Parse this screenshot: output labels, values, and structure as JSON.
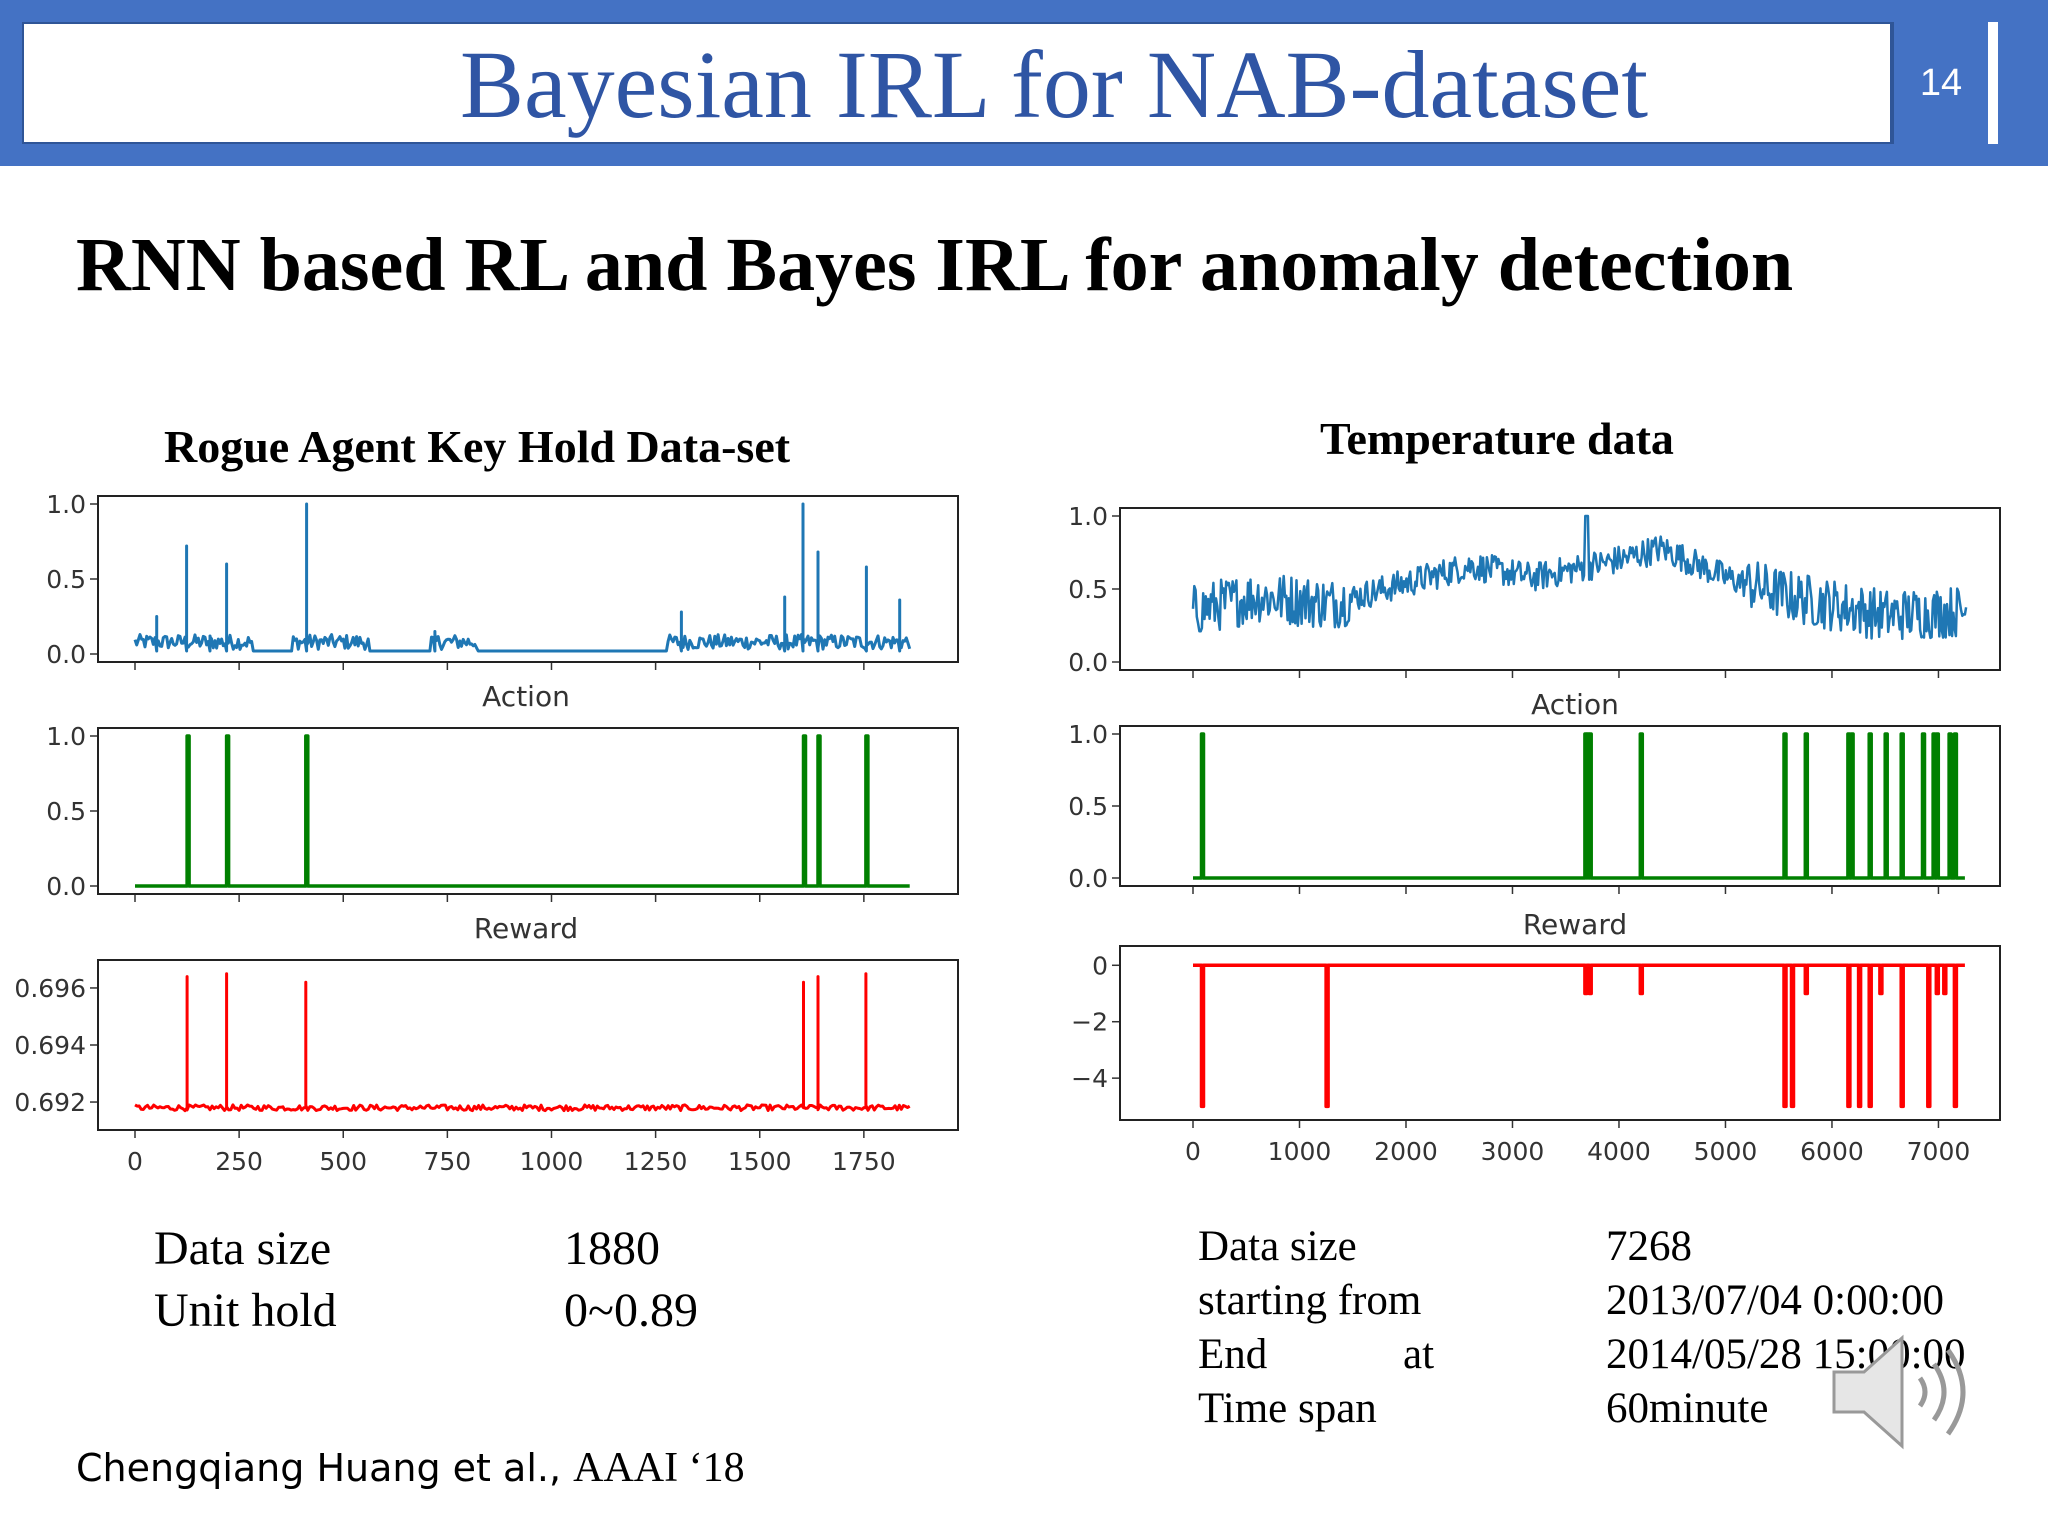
{
  "header": {
    "title": "Bayesian IRL for NAB-dataset",
    "page_number": "14"
  },
  "subtitle": "RNN based RL and Bayes IRL for anomaly detection",
  "colors": {
    "header_blue": "#4472c4",
    "title_blue": "#2f55a4",
    "series_blue": "#1f77b4",
    "series_green": "#008000",
    "series_red": "#ff0000"
  },
  "left_panel": {
    "title": "Rogue Agent Key Hold Data-set",
    "info": {
      "labels": [
        "Data size",
        "Unit hold"
      ],
      "values": [
        "1880",
        "0~0.89"
      ]
    }
  },
  "right_panel": {
    "title": "Temperature data",
    "info": {
      "labels": [
        "Data size",
        "starting  from",
        "End",
        "Time span"
      ],
      "end_at": "at",
      "values": [
        "7268",
        "2013/07/04  0:00:00",
        "2014/05/28  15:00:00",
        "60minute"
      ]
    }
  },
  "citation": {
    "authors": "Chengqiang Huang et al., ",
    "venue": "AAAI ‘18"
  },
  "speaker_icon": "speaker-volume-icon",
  "chart_data": [
    {
      "type": "line",
      "panel": "left",
      "subplot": "data",
      "xlim": [
        0,
        1880
      ],
      "ylim": [
        0,
        1
      ],
      "yticks": [
        "0.0",
        "0.5",
        "1.0"
      ],
      "baseline": 0.08,
      "noise": [
        0.03,
        0.13
      ],
      "noise_ranges": [
        [
          0,
          280
        ],
        [
          380,
          560
        ],
        [
          710,
          820
        ],
        [
          1280,
          1870
        ]
      ],
      "spikes": [
        [
          50,
          0.25
        ],
        [
          125,
          0.72
        ],
        [
          180,
          0.12
        ],
        [
          220,
          0.6
        ],
        [
          410,
          1.0
        ],
        [
          720,
          0.15
        ],
        [
          1310,
          0.28
        ],
        [
          1560,
          0.38
        ],
        [
          1605,
          1.0
        ],
        [
          1640,
          0.68
        ],
        [
          1755,
          0.58
        ],
        [
          1835,
          0.36
        ]
      ]
    },
    {
      "type": "line",
      "panel": "left",
      "subplot": "Action",
      "title": "Action",
      "xlim": [
        0,
        1880
      ],
      "ylim": [
        0,
        1
      ],
      "yticks": [
        "0.0",
        "0.5",
        "1.0"
      ],
      "spikes_x": [
        125,
        220,
        410,
        1605,
        1640,
        1755
      ],
      "spike_value": 1.0,
      "baseline": 0.0
    },
    {
      "type": "line",
      "panel": "left",
      "subplot": "Reward",
      "title": "Reward",
      "xlim": [
        0,
        1880
      ],
      "ylim": [
        0.6913,
        0.6967
      ],
      "yticks": [
        "0.692",
        "0.694",
        "0.696"
      ],
      "xticks": [
        "0",
        "250",
        "500",
        "750",
        "1000",
        "1250",
        "1500",
        "1750"
      ],
      "baseline": 0.6918,
      "spikes": [
        [
          125,
          0.6964
        ],
        [
          220,
          0.6965
        ],
        [
          410,
          0.6962
        ],
        [
          1605,
          0.6962
        ],
        [
          1640,
          0.6964
        ],
        [
          1755,
          0.6965
        ]
      ]
    },
    {
      "type": "line",
      "panel": "right",
      "subplot": "data",
      "xlim": [
        0,
        7268
      ],
      "ylim": [
        0,
        1
      ],
      "yticks": [
        "0.0",
        "0.5",
        "1.0"
      ],
      "trend": [
        [
          0,
          0.35
        ],
        [
          600,
          0.45
        ],
        [
          1300,
          0.4
        ],
        [
          1800,
          0.5
        ],
        [
          2600,
          0.66
        ],
        [
          3200,
          0.58
        ],
        [
          4000,
          0.7
        ],
        [
          4400,
          0.78
        ],
        [
          5000,
          0.58
        ],
        [
          5600,
          0.45
        ],
        [
          6500,
          0.32
        ],
        [
          7268,
          0.35
        ]
      ],
      "amplitude": 0.1,
      "peak": [
        3700,
        1.0
      ]
    },
    {
      "type": "line",
      "panel": "right",
      "subplot": "Action",
      "title": "Action",
      "xlim": [
        0,
        7268
      ],
      "ylim": [
        0,
        1
      ],
      "yticks": [
        "0.0",
        "0.5",
        "1.0"
      ],
      "spikes_x": [
        80,
        3680,
        3700,
        3720,
        4200,
        5550,
        5750,
        6150,
        6180,
        6350,
        6500,
        6650,
        6850,
        6950,
        6980,
        7100,
        7150
      ],
      "spike_value": 1.0,
      "baseline": 0.0
    },
    {
      "type": "line",
      "panel": "right",
      "subplot": "Reward",
      "title": "Reward",
      "xlim": [
        0,
        7268
      ],
      "ylim": [
        -5.2,
        0.4
      ],
      "yticks": [
        "−4",
        "−2",
        "0"
      ],
      "xticks": [
        "0",
        "1000",
        "2000",
        "3000",
        "4000",
        "5000",
        "6000",
        "7000"
      ],
      "baseline": 0.0,
      "drops": [
        [
          80,
          -5
        ],
        [
          1250,
          -5
        ],
        [
          3680,
          -1
        ],
        [
          3720,
          -1
        ],
        [
          4200,
          -1
        ],
        [
          5550,
          -5
        ],
        [
          5620,
          -5
        ],
        [
          5750,
          -1
        ],
        [
          6150,
          -5
        ],
        [
          6250,
          -5
        ],
        [
          6350,
          -5
        ],
        [
          6450,
          -1
        ],
        [
          6650,
          -5
        ],
        [
          6900,
          -5
        ],
        [
          6980,
          -1
        ],
        [
          7050,
          -1
        ],
        [
          7150,
          -5
        ]
      ]
    }
  ]
}
